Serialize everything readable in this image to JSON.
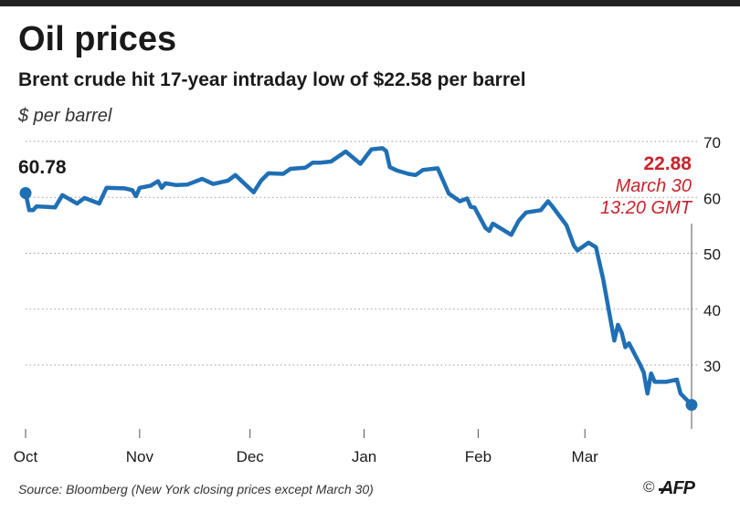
{
  "header": {
    "title": "Oil prices",
    "subtitle": "Brent crude hit 17-year intraday low of $22.58 per barrel",
    "unit": "$ per barrel"
  },
  "footer": {
    "source": "Source: Bloomberg (New York closing prices except March 30)",
    "copyright_symbol": "©",
    "credit": "AFP"
  },
  "colors": {
    "line": "#1f6fb4",
    "highlight": "#c8232c",
    "grid": "#9a9a9a",
    "text": "#1a1a1a",
    "topbar": "#222222"
  },
  "chart_data": {
    "type": "line",
    "title": "Oil prices",
    "subtitle": "Brent crude hit 17-year intraday low of $22.58 per barrel",
    "ylabel": "$ per barrel",
    "xlabel": "",
    "ylim": [
      20,
      70
    ],
    "y_ticks": [
      30,
      40,
      50,
      60,
      70
    ],
    "grid": "horizontal dotted",
    "x_range": [
      "2019-10-01",
      "2020-03-30"
    ],
    "x_ticks": [
      {
        "label": "Oct",
        "date": "2019-10-01"
      },
      {
        "label": "Nov",
        "date": "2019-11-01"
      },
      {
        "label": "Dec",
        "date": "2019-12-01"
      },
      {
        "label": "Jan",
        "date": "2020-01-01"
      },
      {
        "label": "Feb",
        "date": "2020-02-01"
      },
      {
        "label": "Mar",
        "date": "2020-03-01"
      }
    ],
    "series": [
      {
        "name": "",
        "points": [
          [
            "2019-10-01",
            60.78
          ],
          [
            "2019-10-02",
            57.7
          ],
          [
            "2019-10-03",
            57.7
          ],
          [
            "2019-10-04",
            58.4
          ],
          [
            "2019-10-07",
            58.3
          ],
          [
            "2019-10-09",
            58.2
          ],
          [
            "2019-10-11",
            60.4
          ],
          [
            "2019-10-15",
            58.9
          ],
          [
            "2019-10-17",
            59.9
          ],
          [
            "2019-10-21",
            58.9
          ],
          [
            "2019-10-23",
            61.7
          ],
          [
            "2019-10-28",
            61.6
          ],
          [
            "2019-10-30",
            61.3
          ],
          [
            "2019-10-31",
            60.2
          ],
          [
            "2019-11-01",
            61.7
          ],
          [
            "2019-11-04",
            62.1
          ],
          [
            "2019-11-06",
            62.9
          ],
          [
            "2019-11-07",
            61.7
          ],
          [
            "2019-11-08",
            62.5
          ],
          [
            "2019-11-11",
            62.2
          ],
          [
            "2019-11-14",
            62.3
          ],
          [
            "2019-11-18",
            63.3
          ],
          [
            "2019-11-21",
            62.4
          ],
          [
            "2019-11-25",
            63.0
          ],
          [
            "2019-11-27",
            64.0
          ],
          [
            "2019-12-02",
            60.9
          ],
          [
            "2019-12-04",
            63.0
          ],
          [
            "2019-12-06",
            64.3
          ],
          [
            "2019-12-10",
            64.2
          ],
          [
            "2019-12-12",
            65.1
          ],
          [
            "2019-12-16",
            65.3
          ],
          [
            "2019-12-18",
            66.2
          ],
          [
            "2019-12-20",
            66.2
          ],
          [
            "2019-12-23",
            66.4
          ],
          [
            "2019-12-27",
            68.2
          ],
          [
            "2019-12-31",
            66.0
          ],
          [
            "2020-01-03",
            68.6
          ],
          [
            "2020-01-06",
            68.8
          ],
          [
            "2020-01-07",
            68.3
          ],
          [
            "2020-01-08",
            65.4
          ],
          [
            "2020-01-10",
            64.8
          ],
          [
            "2020-01-13",
            64.2
          ],
          [
            "2020-01-15",
            64.0
          ],
          [
            "2020-01-17",
            64.9
          ],
          [
            "2020-01-21",
            65.2
          ],
          [
            "2020-01-24",
            60.7
          ],
          [
            "2020-01-27",
            59.3
          ],
          [
            "2020-01-29",
            59.8
          ],
          [
            "2020-01-30",
            58.3
          ],
          [
            "2020-01-31",
            58.2
          ],
          [
            "2020-02-03",
            54.5
          ],
          [
            "2020-02-04",
            54.0
          ],
          [
            "2020-02-05",
            55.3
          ],
          [
            "2020-02-07",
            54.5
          ],
          [
            "2020-02-10",
            53.3
          ],
          [
            "2020-02-12",
            55.8
          ],
          [
            "2020-02-14",
            57.3
          ],
          [
            "2020-02-18",
            57.7
          ],
          [
            "2020-02-20",
            59.3
          ],
          [
            "2020-02-21",
            58.5
          ],
          [
            "2020-02-25",
            55.0
          ],
          [
            "2020-02-27",
            51.4
          ],
          [
            "2020-02-28",
            50.5
          ],
          [
            "2020-03-02",
            51.9
          ],
          [
            "2020-03-04",
            51.1
          ],
          [
            "2020-03-06",
            45.3
          ],
          [
            "2020-03-09",
            34.4
          ],
          [
            "2020-03-10",
            37.2
          ],
          [
            "2020-03-11",
            35.8
          ],
          [
            "2020-03-12",
            33.2
          ],
          [
            "2020-03-13",
            33.9
          ],
          [
            "2020-03-16",
            30.1
          ],
          [
            "2020-03-17",
            28.7
          ],
          [
            "2020-03-18",
            24.9
          ],
          [
            "2020-03-19",
            28.5
          ],
          [
            "2020-03-20",
            27.0
          ],
          [
            "2020-03-23",
            27.0
          ],
          [
            "2020-03-26",
            27.4
          ],
          [
            "2020-03-27",
            24.9
          ],
          [
            "2020-03-30",
            22.88
          ]
        ]
      }
    ],
    "annotations": [
      {
        "label": "60.78",
        "date": "2019-10-01",
        "value": 60.78,
        "color": "#1a1a1a"
      },
      {
        "label": "22.88",
        "lines": [
          "March 30",
          "13:20 GMT"
        ],
        "date": "2020-03-30",
        "value": 22.88,
        "color": "#c8232c"
      }
    ]
  }
}
